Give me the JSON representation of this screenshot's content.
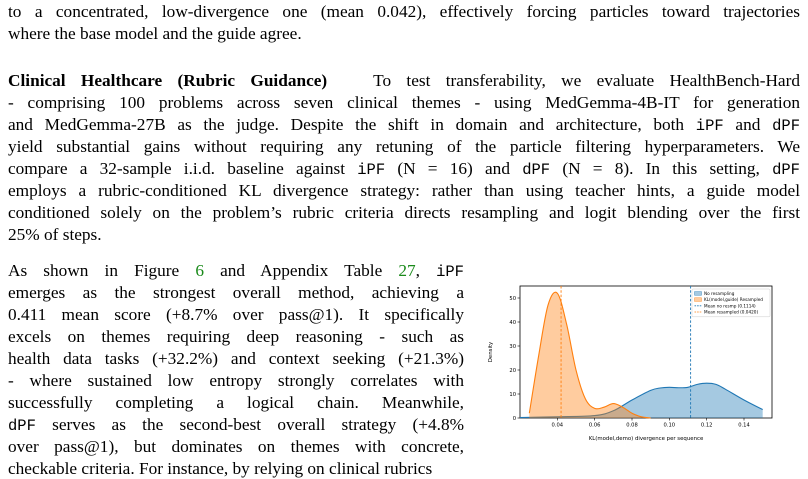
{
  "paragraph_top": {
    "line1": "to a concentrated, low-divergence one (mean 0.042), effectively forcing particles toward trajectories",
    "line2": "where the base model and the guide agree."
  },
  "clinical": {
    "heading": "Clinical Healthcare (Rubric Guidance)",
    "l1_rest": "To test transferability, we evaluate HealthBench-Hard",
    "l2": "- comprising 100 problems across seven clinical themes - using MedGemma-4B-IT for generation",
    "l3": "and MedGemma-27B as the judge. Despite the shift in domain and architecture, both",
    "ipf": "iPF",
    "and": "and",
    "dpf": "dPF",
    "l4": "yield substantial gains without requiring any retuning of the particle filtering hyperparameters. We",
    "l5a": "compare a 32-sample i.i.d. baseline against",
    "l5b": "(N = 16) and",
    "l5c": "(N = 8). In this setting,",
    "l6": "employs a rubric-conditioned KL divergence strategy: rather than using teacher hints, a guide model",
    "l7": "conditioned solely on the problem’s rubric criteria directs resampling and logit blending over the first",
    "l8": "25% of steps."
  },
  "shown": {
    "l1a": "As shown in Figure",
    "fig_ref": "6",
    "l1b": "and Appendix Table",
    "table_ref": "27",
    "l2": "emerges as the strongest overall method, achieving a",
    "l3": "0.411 mean score (+8.7% over pass@1).  It specifically",
    "l4": "excels on themes requiring deep reasoning - such as",
    "l5": "health data tasks (+32.2%) and context seeking (+21.3%)",
    "l6": "- where sustained low entropy strongly correlates with",
    "l7": "successfully completing a logical chain.    Meanwhile,",
    "l8": "serves as the second-best overall strategy (+4.8%",
    "l9": "over pass@1), but dominates on themes with concrete,",
    "l10": "checkable criteria. For instance, by relying on clinical rubrics"
  },
  "chart_data": {
    "type": "area",
    "xlabel": "KL(model,demo) divergence per sequence",
    "ylabel": "Density",
    "xlim": [
      0.02,
      0.155
    ],
    "ylim": [
      0,
      55
    ],
    "xticks": [
      "0.04",
      "0.06",
      "0.08",
      "0.10",
      "0.12",
      "0.14"
    ],
    "yticks": [
      "0",
      "10",
      "20",
      "30",
      "40",
      "50"
    ],
    "legend_position": "top-right",
    "series": [
      {
        "name": "No resampling",
        "color": "#1f77b4",
        "x": [
          0.02,
          0.04,
          0.06,
          0.07,
          0.08,
          0.09,
          0.095,
          0.1,
          0.105,
          0.11,
          0.115,
          0.12,
          0.125,
          0.13,
          0.14,
          0.15
        ],
        "y": [
          0.2,
          0.5,
          1.0,
          3.0,
          7.5,
          11.5,
          12.5,
          12.8,
          12.6,
          12.8,
          14.0,
          14.5,
          14.0,
          12.0,
          7.5,
          3.5
        ]
      },
      {
        "name": "KL(model,guide) Resampled",
        "color": "#ff7f0e",
        "x": [
          0.025,
          0.03,
          0.035,
          0.04,
          0.045,
          0.05,
          0.055,
          0.06,
          0.065,
          0.07,
          0.075,
          0.08,
          0.085,
          0.09
        ],
        "y": [
          2.0,
          26,
          47,
          52,
          39,
          20,
          8.0,
          4.0,
          4.5,
          6.0,
          4.5,
          2.0,
          0.5,
          0.0
        ]
      }
    ],
    "vlines": [
      {
        "name": "Mean no resmp (0.1114)",
        "x": 0.1114,
        "color": "#1f77b4"
      },
      {
        "name": "Mean resampled (0.0420)",
        "x": 0.042,
        "color": "#ff7f0e"
      }
    ]
  }
}
